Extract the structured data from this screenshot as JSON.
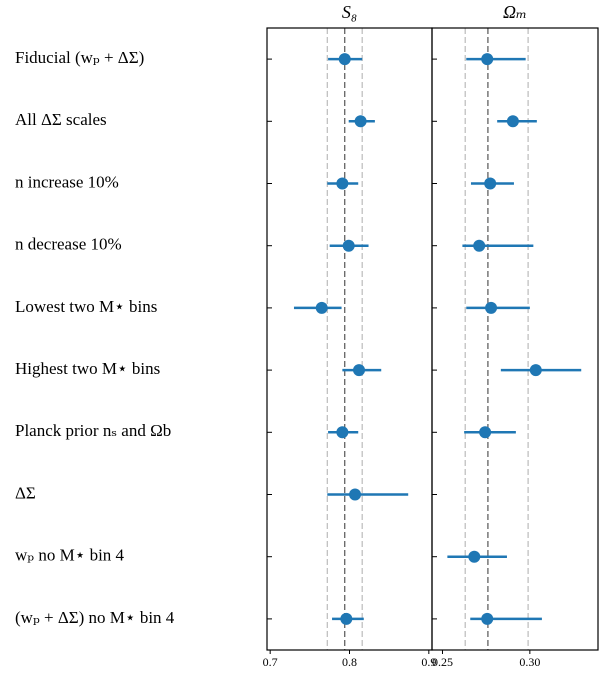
{
  "chart_data": {
    "type": "forest",
    "categories": [
      "Fiducial (wₚ + ΔΣ)",
      "All ΔΣ scales",
      "n increase 10%",
      "n decrease 10%",
      "Lowest two M⋆ bins",
      "Highest two M⋆ bins",
      "Planck prior nₛ and Ωb",
      "ΔΣ",
      "wₚ no M⋆ bin 4",
      "(wₚ + ΔΣ) no M⋆ bin 4"
    ],
    "series": [
      {
        "name": "S₈",
        "color": "#1f77b4",
        "values": [
          0.794,
          0.814,
          0.791,
          0.799,
          0.765,
          0.812,
          0.791,
          0.807,
          null,
          0.796
        ],
        "err_low": [
          0.021,
          0.015,
          0.019,
          0.024,
          0.035,
          0.021,
          0.018,
          0.035,
          null,
          0.018
        ],
        "err_high": [
          0.022,
          0.018,
          0.02,
          0.025,
          0.025,
          0.028,
          0.02,
          0.067,
          null,
          0.022
        ],
        "xlim": [
          0.696,
          0.904
        ],
        "xticks": [
          0.7,
          0.8,
          0.9
        ],
        "reference": 0.794,
        "band": [
          0.772,
          0.816
        ]
      },
      {
        "name": "Ωₘ",
        "color": "#1f77b4",
        "values": [
          0.2756,
          0.2903,
          0.2773,
          0.271,
          0.2778,
          0.3034,
          0.2744,
          null,
          0.2682,
          0.2756
        ],
        "err_low": [
          0.012,
          0.009,
          0.011,
          0.0096,
          0.0142,
          0.02,
          0.012,
          null,
          0.0154,
          0.0097
        ],
        "err_high": [
          0.022,
          0.0137,
          0.0136,
          0.031,
          0.0222,
          0.026,
          0.0176,
          null,
          0.0187,
          0.0313
        ],
        "xlim": [
          0.244,
          0.339
        ],
        "xticks": [
          0.25,
          {
            "value": 0.3,
            "label": "0.30"
          }
        ],
        "reference": 0.276,
        "band": [
          0.263,
          0.299
        ]
      }
    ]
  }
}
